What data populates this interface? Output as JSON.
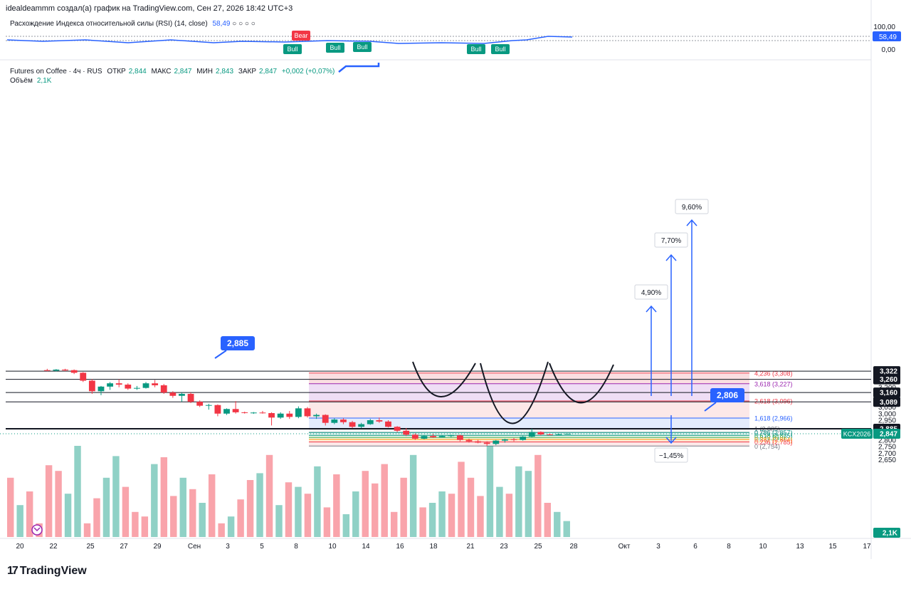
{
  "header": {
    "credit": "idealdeammm создал(а) график на TradingView.com, Сен 27, 2026 18:42 UTC+3"
  },
  "rsi_panel": {
    "title": "Расхождение Индекса относительной силы (RSI) (14, close)",
    "value": "58,49",
    "circles": "○ ○ ○ ○",
    "scale": [
      "100,00",
      "58,49",
      "0,00"
    ],
    "signals": [
      {
        "label": "Bear",
        "type": "bear"
      },
      {
        "label": "Bull",
        "type": "bull"
      },
      {
        "label": "Bull",
        "type": "bull"
      },
      {
        "label": "Bull",
        "type": "bull"
      },
      {
        "label": "Bull",
        "type": "bull"
      },
      {
        "label": "Bull",
        "type": "bull"
      }
    ]
  },
  "main_legend": {
    "symbol": "Futures on Coffee · 4ч · RUS",
    "open_label": "ОТКР",
    "open": "2,844",
    "high_label": "МАКС",
    "high": "2,847",
    "low_label": "МИН",
    "low": "2,843",
    "close_label": "ЗАКР",
    "close": "2,847",
    "change": "+0,002 (+0,07%)",
    "volume_label": "Объём",
    "volume": "2,1K"
  },
  "price_axis": {
    "ticks": [
      "3,300",
      "3,250",
      "3,200",
      "3,150",
      "3,100",
      "3,050",
      "3,000",
      "2,950",
      "2,900",
      "2,850",
      "2,800",
      "2,750",
      "2,700",
      "2,650"
    ],
    "tags": [
      {
        "label": "3,322",
        "style": "dark"
      },
      {
        "label": "3,260",
        "style": "dark"
      },
      {
        "label": "3,160",
        "style": "dark"
      },
      {
        "label": "3,089",
        "style": "dark"
      },
      {
        "label": "2,885",
        "style": "dark"
      },
      {
        "label": "2,847",
        "style": "green"
      },
      {
        "label": "2,1K",
        "style": "green"
      }
    ],
    "symbol_tag": "KCX2026"
  },
  "time_axis": {
    "labels": [
      "20",
      "22",
      "25",
      "27",
      "29",
      "Сен",
      "3",
      "5",
      "8",
      "10",
      "14",
      "16",
      "18",
      "21",
      "23",
      "25",
      "28",
      "Окт",
      "3",
      "6",
      "8",
      "10",
      "13",
      "15",
      "17"
    ]
  },
  "horizontal_levels": [
    "3,322",
    "3,260",
    "3,160",
    "3,089",
    "2,885"
  ],
  "fibonacci": [
    {
      "ratio": "4,236",
      "price": "3,308",
      "label": "4,236 (3,308)",
      "color": "#f23645"
    },
    {
      "ratio": "3,618",
      "price": "3,227",
      "label": "3,618 (3,227)",
      "color": "#9c27b0"
    },
    {
      "ratio": "2,618",
      "price": "3,096",
      "label": "2,618 (3,096)",
      "color": "#f23645"
    },
    {
      "ratio": "1,618",
      "price": "2,966",
      "label": "1,618 (2,966)",
      "color": "#2962ff"
    },
    {
      "ratio": "1",
      "price": "2,885",
      "label": "1 (2,885)",
      "color": "#787b86"
    },
    {
      "ratio": "0,786",
      "price": "2,857",
      "label": "0,786 (2,857)",
      "color": "#00897b"
    },
    {
      "ratio": "0,618",
      "price": "2,835",
      "label": "0,618 (2,835)",
      "color": "#089981"
    },
    {
      "ratio": "0,5",
      "price": "2,819",
      "label": "0,5 (2,819)",
      "color": "#4caf50"
    },
    {
      "ratio": "0,382",
      "price": "2,804",
      "label": "0,382 (2,804)",
      "color": "#ff9800"
    },
    {
      "ratio": "0,236",
      "price": "2,785",
      "label": "0,236 (2,785)",
      "color": "#f23645"
    },
    {
      "ratio": "0",
      "price": "2,754",
      "label": "0 (2,754)",
      "color": "#787b86"
    }
  ],
  "callouts": [
    {
      "label": "2,885",
      "kind": "price-bubble"
    },
    {
      "label": "2,806",
      "kind": "price-bubble"
    }
  ],
  "targets": [
    {
      "label": "4,90%",
      "direction": "up"
    },
    {
      "label": "7,70%",
      "direction": "up"
    },
    {
      "label": "9,60%",
      "direction": "up"
    },
    {
      "label": "−1,45%",
      "direction": "down"
    }
  ],
  "colors": {
    "up": "#089981",
    "down": "#f23645",
    "accent": "#2962ff",
    "fib_red": "#f23645",
    "fib_purple": "#9c27b0"
  },
  "chart_data": {
    "type": "candlestick",
    "symbol": "KCX2026",
    "interval": "4ч",
    "ylim": [
      2.64,
      3.34
    ],
    "candles": [
      {
        "d": "20",
        "o": 3.33,
        "h": 3.34,
        "l": 3.322,
        "c": 3.325
      },
      {
        "d": "21",
        "o": 3.326,
        "h": 3.338,
        "l": 3.32,
        "c": 3.334
      },
      {
        "d": "22",
        "o": 3.334,
        "h": 3.34,
        "l": 3.322,
        "c": 3.328
      },
      {
        "d": "26",
        "o": 3.33,
        "h": 3.335,
        "l": 3.3,
        "c": 3.31
      },
      {
        "d": "26",
        "o": 3.31,
        "h": 3.315,
        "l": 3.24,
        "c": 3.25
      },
      {
        "d": "27",
        "o": 3.25,
        "h": 3.262,
        "l": 3.15,
        "c": 3.17
      },
      {
        "d": "27",
        "o": 3.17,
        "h": 3.21,
        "l": 3.14,
        "c": 3.205
      },
      {
        "d": "28",
        "o": 3.205,
        "h": 3.24,
        "l": 3.18,
        "c": 3.23
      },
      {
        "d": "28",
        "o": 3.23,
        "h": 3.26,
        "l": 3.2,
        "c": 3.22
      },
      {
        "d": "29",
        "o": 3.22,
        "h": 3.23,
        "l": 3.18,
        "c": 3.19
      },
      {
        "d": "29",
        "o": 3.19,
        "h": 3.21,
        "l": 3.18,
        "c": 3.195
      },
      {
        "d": "30",
        "o": 3.195,
        "h": 3.24,
        "l": 3.19,
        "c": 3.23
      },
      {
        "d": "31",
        "o": 3.23,
        "h": 3.255,
        "l": 3.2,
        "c": 3.215
      },
      {
        "d": "31",
        "o": 3.215,
        "h": 3.225,
        "l": 3.15,
        "c": 3.16
      },
      {
        "d": "Сен",
        "o": 3.16,
        "h": 3.17,
        "l": 3.12,
        "c": 3.135
      },
      {
        "d": "Сен",
        "o": 3.135,
        "h": 3.16,
        "l": 3.09,
        "c": 3.15
      },
      {
        "d": "2",
        "o": 3.15,
        "h": 3.16,
        "l": 3.08,
        "c": 3.09
      },
      {
        "d": "2",
        "o": 3.09,
        "h": 3.1,
        "l": 3.05,
        "c": 3.06
      },
      {
        "d": "3",
        "o": 3.06,
        "h": 3.075,
        "l": 3.03,
        "c": 3.065
      },
      {
        "d": "3",
        "o": 3.065,
        "h": 3.07,
        "l": 2.98,
        "c": 3.0
      },
      {
        "d": "4",
        "o": 3.0,
        "h": 3.04,
        "l": 2.99,
        "c": 3.035
      },
      {
        "d": "4",
        "o": 3.035,
        "h": 3.095,
        "l": 3.0,
        "c": 3.01
      },
      {
        "d": "5",
        "o": 3.01,
        "h": 3.015,
        "l": 3.0,
        "c": 3.005
      },
      {
        "d": "5",
        "o": 3.005,
        "h": 3.012,
        "l": 2.998,
        "c": 3.008
      },
      {
        "d": "6",
        "o": 3.008,
        "h": 3.02,
        "l": 3.0,
        "c": 3.004
      },
      {
        "d": "7",
        "o": 3.004,
        "h": 3.01,
        "l": 2.91,
        "c": 2.97
      },
      {
        "d": "8",
        "o": 2.97,
        "h": 3.01,
        "l": 2.96,
        "c": 3.0
      },
      {
        "d": "8",
        "o": 3.0,
        "h": 3.02,
        "l": 2.96,
        "c": 2.975
      },
      {
        "d": "9",
        "o": 2.975,
        "h": 3.055,
        "l": 2.965,
        "c": 3.04
      },
      {
        "d": "9",
        "o": 3.04,
        "h": 3.05,
        "l": 2.97,
        "c": 2.98
      },
      {
        "d": "10",
        "o": 2.98,
        "h": 3.0,
        "l": 2.96,
        "c": 2.99
      },
      {
        "d": "11",
        "o": 2.99,
        "h": 2.995,
        "l": 2.91,
        "c": 2.93
      },
      {
        "d": "12",
        "o": 2.93,
        "h": 2.965,
        "l": 2.92,
        "c": 2.955
      },
      {
        "d": "12",
        "o": 2.955,
        "h": 2.965,
        "l": 2.92,
        "c": 2.935
      },
      {
        "d": "13",
        "o": 2.935,
        "h": 2.945,
        "l": 2.89,
        "c": 2.9
      },
      {
        "d": "14",
        "o": 2.9,
        "h": 2.93,
        "l": 2.89,
        "c": 2.92
      },
      {
        "d": "14",
        "o": 2.92,
        "h": 2.96,
        "l": 2.915,
        "c": 2.95
      },
      {
        "d": "15",
        "o": 2.95,
        "h": 2.97,
        "l": 2.93,
        "c": 2.94
      },
      {
        "d": "15",
        "o": 2.94,
        "h": 2.95,
        "l": 2.895,
        "c": 2.9
      },
      {
        "d": "16",
        "o": 2.9,
        "h": 2.905,
        "l": 2.86,
        "c": 2.87
      },
      {
        "d": "16",
        "o": 2.87,
        "h": 2.89,
        "l": 2.83,
        "c": 2.84
      },
      {
        "d": "17",
        "o": 2.84,
        "h": 2.85,
        "l": 2.8,
        "c": 2.81
      },
      {
        "d": "18",
        "o": 2.81,
        "h": 2.835,
        "l": 2.805,
        "c": 2.83
      },
      {
        "d": "19",
        "o": 2.83,
        "h": 2.845,
        "l": 2.815,
        "c": 2.82
      },
      {
        "d": "19",
        "o": 2.82,
        "h": 2.835,
        "l": 2.818,
        "c": 2.83
      },
      {
        "d": "20",
        "o": 2.83,
        "h": 2.84,
        "l": 2.82,
        "c": 2.835
      },
      {
        "d": "21",
        "o": 2.835,
        "h": 2.84,
        "l": 2.79,
        "c": 2.8
      },
      {
        "d": "21",
        "o": 2.8,
        "h": 2.81,
        "l": 2.78,
        "c": 2.79
      },
      {
        "d": "22",
        "o": 2.79,
        "h": 2.8,
        "l": 2.775,
        "c": 2.78
      },
      {
        "d": "23",
        "o": 2.78,
        "h": 2.79,
        "l": 2.756,
        "c": 2.77
      },
      {
        "d": "23",
        "o": 2.77,
        "h": 2.8,
        "l": 2.76,
        "c": 2.795
      },
      {
        "d": "24",
        "o": 2.795,
        "h": 2.81,
        "l": 2.78,
        "c": 2.805
      },
      {
        "d": "24",
        "o": 2.805,
        "h": 2.815,
        "l": 2.79,
        "c": 2.8
      },
      {
        "d": "25",
        "o": 2.8,
        "h": 2.83,
        "l": 2.795,
        "c": 2.825
      },
      {
        "d": "25",
        "o": 2.825,
        "h": 2.885,
        "l": 2.82,
        "c": 2.86
      },
      {
        "d": "26",
        "o": 2.86,
        "h": 2.865,
        "l": 2.835,
        "c": 2.842
      },
      {
        "d": "26",
        "o": 2.842,
        "h": 2.85,
        "l": 2.835,
        "c": 2.838
      },
      {
        "d": "27",
        "o": 2.838,
        "h": 2.848,
        "l": 2.836,
        "c": 2.844
      },
      {
        "d": "27",
        "o": 2.844,
        "h": 2.847,
        "l": 2.843,
        "c": 2.847
      }
    ],
    "volume": [
      52,
      28,
      40,
      12,
      63,
      58,
      38,
      80,
      12,
      34,
      52,
      71,
      44,
      22,
      18,
      64,
      70,
      36,
      52,
      42,
      30,
      55,
      12,
      18,
      33,
      50,
      56,
      72,
      28,
      48,
      44,
      38,
      62,
      26,
      55,
      20,
      40,
      58,
      47,
      64,
      22,
      52,
      72,
      26,
      30,
      40,
      38,
      66,
      52,
      36,
      80,
      44,
      38,
      62,
      58,
      72,
      30,
      22,
      14
    ]
  }
}
